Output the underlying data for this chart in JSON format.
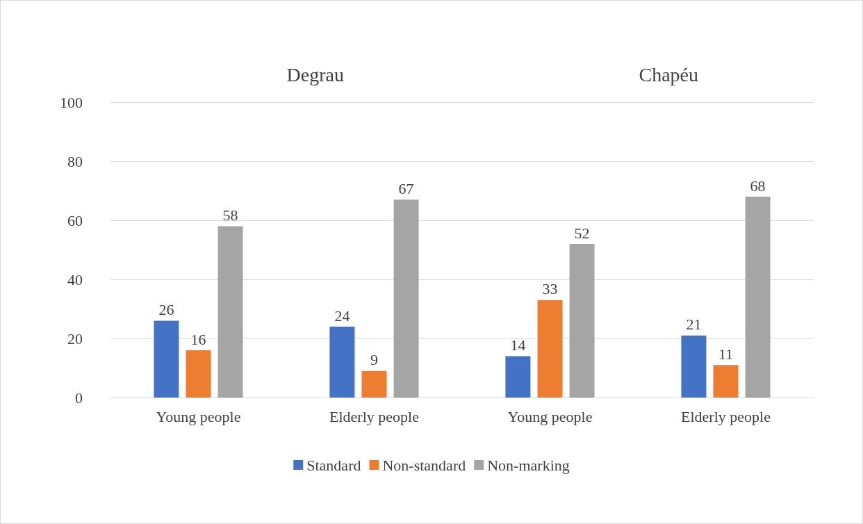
{
  "chart_data": {
    "type": "bar",
    "categories": [
      "Young people",
      "Elderly people",
      "Young people",
      "Elderly people"
    ],
    "series": [
      {
        "name": "Standard",
        "color": "#4472c4",
        "values": [
          26,
          24,
          14,
          21
        ]
      },
      {
        "name": "Non-standard",
        "color": "#ed7d31",
        "values": [
          16,
          9,
          33,
          11
        ]
      },
      {
        "name": "Non-marking",
        "color": "#a5a5a5",
        "values": [
          58,
          67,
          52,
          68
        ]
      }
    ],
    "annotations": [
      "Degrau",
      "Chapéu"
    ],
    "ylim": [
      0,
      100
    ],
    "yticks": [
      0,
      20,
      40,
      60,
      80,
      100
    ],
    "grid": "y",
    "legend": "bottom",
    "data_labels": true
  }
}
